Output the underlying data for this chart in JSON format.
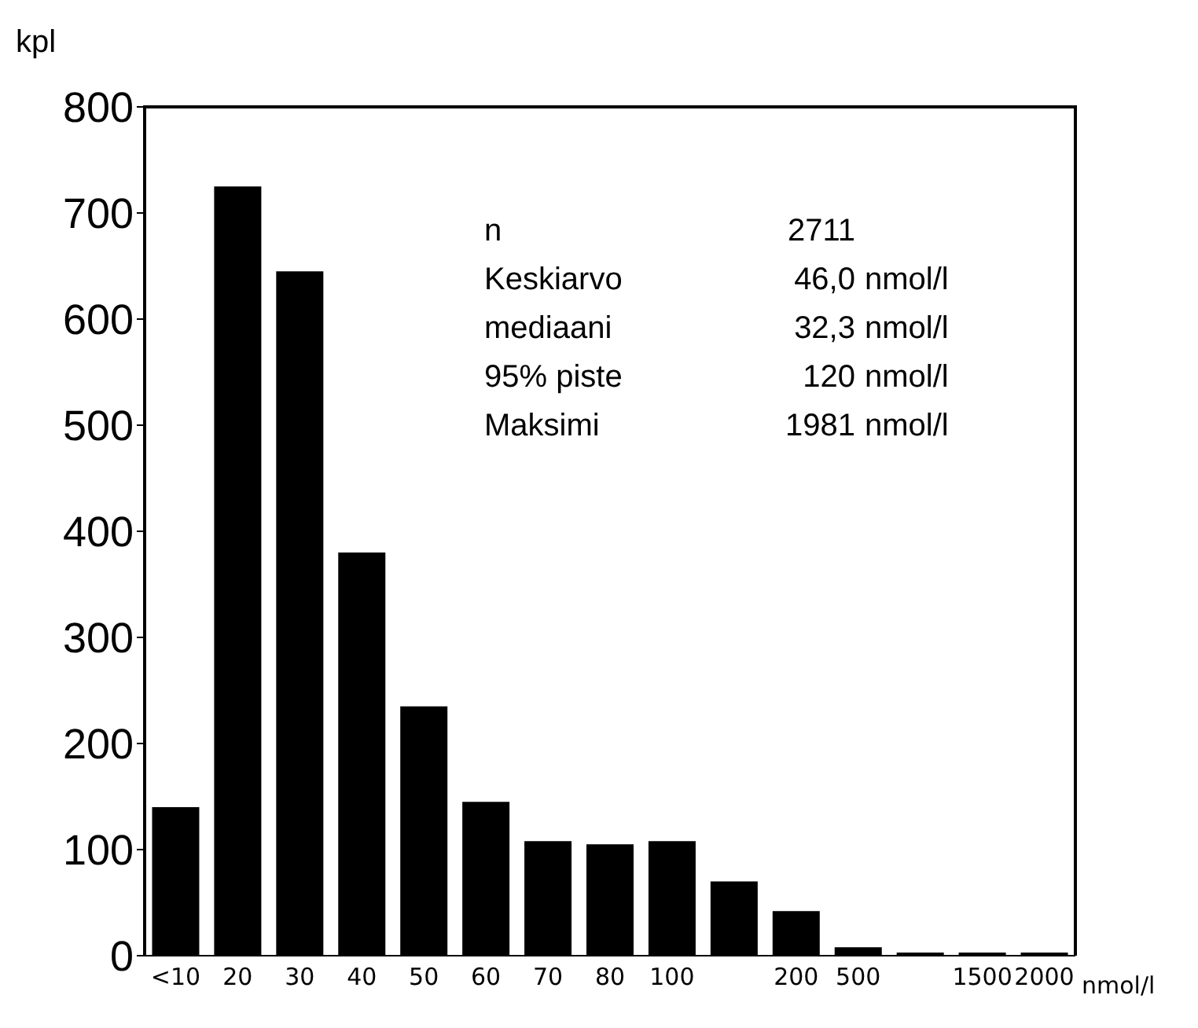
{
  "chart_data": {
    "type": "bar",
    "ylabel": "kpl",
    "xlabel": "nmol/l",
    "categories": [
      "<10",
      "20",
      "30",
      "40",
      "50",
      "60",
      "70",
      "80",
      "100",
      null,
      "200",
      "500",
      null,
      "1500",
      "2000"
    ],
    "values": [
      140,
      725,
      645,
      380,
      235,
      145,
      108,
      105,
      108,
      70,
      42,
      8,
      3,
      3,
      3
    ],
    "color": "#000000",
    "ylim": [
      0,
      800
    ],
    "yticks": [
      0,
      100,
      200,
      300,
      400,
      500,
      600,
      700,
      800
    ],
    "grid": false,
    "legend": false,
    "annotations": [
      "n\t2711",
      "Keskiarvo\t46,0\tnmol/l",
      "mediaani\t32,3\tnmol/l",
      "95% piste\t120\tnmol/l",
      "Maksimi\t1981\tnmol/l"
    ]
  }
}
